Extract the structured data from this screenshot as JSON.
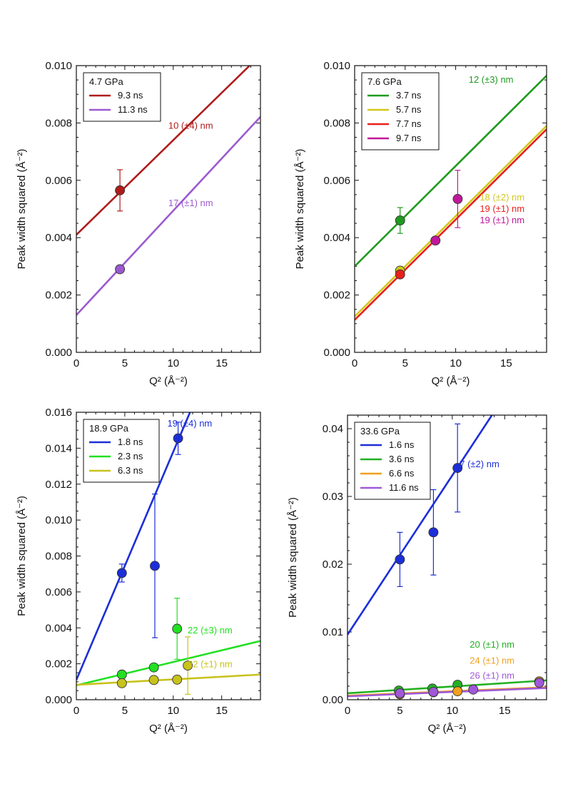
{
  "chart_data": [
    {
      "type": "scatter",
      "xlabel": "Q² (Å⁻²)",
      "ylabel": "Peak width squared (Å⁻²)",
      "xlim": [
        0,
        19
      ],
      "ylim": [
        0,
        0.01
      ],
      "xticks": [
        0,
        5,
        10,
        15
      ],
      "xticks_minor": 1,
      "yticks": [
        0,
        0.002,
        0.004,
        0.006,
        0.008,
        0.01
      ],
      "yticks_minor": 0.0005,
      "ytick_labels": [
        "0.000",
        "0.002",
        "0.004",
        "0.006",
        "0.008",
        "0.010"
      ],
      "legend": {
        "title": "4.7 GPa",
        "position": "top-left"
      },
      "series": [
        {
          "name": "9.3 ns",
          "color": "#b01c1c",
          "points": [
            {
              "x": 4.5,
              "y": 0.00565,
              "err": 0.00072
            }
          ],
          "fit": {
            "intercept": 0.0041,
            "slope": 0.00033
          }
        },
        {
          "name": "11.3 ns",
          "color": "#9b59d0",
          "points": [
            {
              "x": 4.5,
              "y": 0.0029
            }
          ],
          "fit": {
            "intercept": 0.0013,
            "slope": 0.000364
          }
        }
      ],
      "annotations": [
        {
          "text": "10 (±4) nm",
          "color": "#b01c1c",
          "x": 11.8,
          "y": 0.0078
        },
        {
          "text": "17 (±1) nm",
          "color": "#9b59d0",
          "x": 11.8,
          "y": 0.0051
        }
      ]
    },
    {
      "type": "scatter",
      "xlabel": "Q² (Å⁻²)",
      "ylabel": "Peak width squared (Å⁻²)",
      "xlim": [
        0,
        19
      ],
      "ylim": [
        0,
        0.01
      ],
      "xticks": [
        0,
        5,
        10,
        15
      ],
      "xticks_minor": 1,
      "yticks": [
        0,
        0.002,
        0.004,
        0.006,
        0.008,
        0.01
      ],
      "yticks_minor": 0.0005,
      "ytick_labels": [
        "0.000",
        "0.002",
        "0.004",
        "0.006",
        "0.008",
        "0.010"
      ],
      "legend": {
        "title": "7.6 GPa",
        "position": "top-left"
      },
      "series": [
        {
          "name": "3.7 ns",
          "color": "#1f9a1f",
          "points": [
            {
              "x": 4.5,
              "y": 0.0046,
              "err": 0.00045
            }
          ],
          "fit": {
            "intercept": 0.003,
            "slope": 0.00035
          }
        },
        {
          "name": "5.7 ns",
          "color": "#d1c81c",
          "points": [
            {
              "x": 4.5,
              "y": 0.00285
            }
          ],
          "fit": {
            "intercept": 0.00125,
            "slope": 0.00035
          }
        },
        {
          "name": "7.7 ns",
          "color": "#e8201c",
          "points": [
            {
              "x": 4.5,
              "y": 0.00272
            }
          ],
          "fit": {
            "intercept": 0.00113,
            "slope": 0.00035
          }
        },
        {
          "name": "9.7 ns",
          "color": "#c0189a",
          "points": [
            {
              "x": 8,
              "y": 0.0039
            },
            {
              "x": 10.2,
              "y": 0.00535,
              "err": 0.001
            }
          ],
          "fit": null
        }
      ],
      "annotations": [
        {
          "text": "12 (±3) nm",
          "color": "#1f9a1f",
          "x": 13.5,
          "y": 0.0094
        },
        {
          "text": "18 (±2) nm",
          "color": "#d1c81c",
          "x": 14.6,
          "y": 0.0053
        },
        {
          "text": "19 (±1) nm",
          "color": "#e8201c",
          "x": 14.6,
          "y": 0.0049
        },
        {
          "text": "19 (±1) nm",
          "color": "#c0189a",
          "x": 14.6,
          "y": 0.0045
        }
      ]
    },
    {
      "type": "scatter",
      "xlabel": "Q² (Å⁻²)",
      "ylabel": "Peak width squared (Å⁻²)",
      "xlim": [
        0,
        19
      ],
      "ylim": [
        0,
        0.016
      ],
      "xticks": [
        0,
        5,
        10,
        15
      ],
      "xticks_minor": 1,
      "yticks": [
        0,
        0.002,
        0.004,
        0.006,
        0.008,
        0.01,
        0.012,
        0.014,
        0.016
      ],
      "yticks_minor": 0.0005,
      "ytick_labels": [
        "0.000",
        "0.002",
        "0.004",
        "0.006",
        "0.008",
        "0.010",
        "0.012",
        "0.014",
        "0.016"
      ],
      "legend": {
        "title": "18.9 GPa",
        "position": "top-left"
      },
      "series": [
        {
          "name": "1.8 ns",
          "color": "#1c2ed8",
          "points": [
            {
              "x": 4.7,
              "y": 0.00705,
              "err": 0.0005
            },
            {
              "x": 8.1,
              "y": 0.00745,
              "err": 0.004
            },
            {
              "x": 10.5,
              "y": 0.01455,
              "err": 0.0009
            }
          ],
          "fit": {
            "intercept": 0.0011,
            "slope": 0.00127
          }
        },
        {
          "name": "2.3 ns",
          "color": "#22e022",
          "points": [
            {
              "x": 4.7,
              "y": 0.0014
            },
            {
              "x": 8,
              "y": 0.0018
            },
            {
              "x": 10.4,
              "y": 0.00395,
              "err": 0.0017
            }
          ],
          "fit": {
            "intercept": 0.0008,
            "slope": 0.00013
          }
        },
        {
          "name": "6.3 ns",
          "color": "#c8c21c",
          "points": [
            {
              "x": 4.7,
              "y": 0.00092
            },
            {
              "x": 8,
              "y": 0.0011
            },
            {
              "x": 10.4,
              "y": 0.00112
            },
            {
              "x": 11.5,
              "y": 0.0019,
              "err": 0.0016
            }
          ],
          "fit": {
            "intercept": 0.00083,
            "slope": 3e-05
          }
        }
      ],
      "annotations": [
        {
          "text": "19 (±4) nm",
          "color": "#1c2ed8",
          "x": 11.7,
          "y": 0.0152
        },
        {
          "text": "22 (±3) nm",
          "color": "#22e022",
          "x": 13.8,
          "y": 0.0037
        },
        {
          "text": "22 (±1) nm",
          "color": "#c8c21c",
          "x": 13.8,
          "y": 0.0018
        }
      ]
    },
    {
      "type": "scatter",
      "xlabel": "Q² (Å⁻²)",
      "ylabel": "Peak width squared (Å⁻²)",
      "xlim": [
        0,
        19
      ],
      "ylim": [
        0,
        0.042
      ],
      "xticks": [
        0,
        5,
        10,
        15
      ],
      "xticks_minor": 1,
      "yticks": [
        0,
        0.01,
        0.02,
        0.03,
        0.04
      ],
      "yticks_minor": 0.002,
      "ytick_labels": [
        "0.00",
        "0.01",
        "0.02",
        "0.03",
        "0.04"
      ],
      "legend": {
        "title": "33.6 GPa",
        "position": "top-left"
      },
      "series": [
        {
          "name": "1.6 ns",
          "color": "#1c2ed8",
          "points": [
            {
              "x": 5,
              "y": 0.0207,
              "err": 0.004
            },
            {
              "x": 8.2,
              "y": 0.0247,
              "err": 0.0063
            },
            {
              "x": 10.5,
              "y": 0.0342,
              "err": 0.0065
            }
          ],
          "fit": {
            "intercept": 0.0096,
            "slope": 0.00235
          }
        },
        {
          "name": "3.6 ns",
          "color": "#22b022",
          "points": [
            {
              "x": 4.9,
              "y": 0.00135
            },
            {
              "x": 8.1,
              "y": 0.00165
            },
            {
              "x": 10.5,
              "y": 0.0022
            }
          ],
          "fit": {
            "intercept": 0.00095,
            "slope": 0.0001
          }
        },
        {
          "name": "6.6 ns",
          "color": "#f0a01c",
          "points": [
            {
              "x": 5,
              "y": 0.0008
            },
            {
              "x": 8.2,
              "y": 0.0011
            },
            {
              "x": 10.5,
              "y": 0.00125
            },
            {
              "x": 18.3,
              "y": 0.0027
            }
          ],
          "fit": {
            "intercept": 0.0006,
            "slope": 6.5e-05
          }
        },
        {
          "name": "11.6 ns",
          "color": "#a058d8",
          "points": [
            {
              "x": 5,
              "y": 0.00095
            },
            {
              "x": 8.2,
              "y": 0.00115
            },
            {
              "x": 12,
              "y": 0.0015
            },
            {
              "x": 18.3,
              "y": 0.0025
            }
          ],
          "fit": {
            "intercept": 0.0005,
            "slope": 6.5e-05
          }
        }
      ],
      "annotations": [
        {
          "text": "7 (±2) nm",
          "color": "#1c2ed8",
          "x": 12.6,
          "y": 0.0343
        },
        {
          "text": "20 (±1) nm",
          "color": "#22b022",
          "x": 13.8,
          "y": 0.0077
        },
        {
          "text": "24 (±1) nm",
          "color": "#f0a01c",
          "x": 13.8,
          "y": 0.0053
        },
        {
          "text": "26 (±1) nm",
          "color": "#a058d8",
          "x": 13.8,
          "y": 0.0031
        }
      ]
    }
  ]
}
